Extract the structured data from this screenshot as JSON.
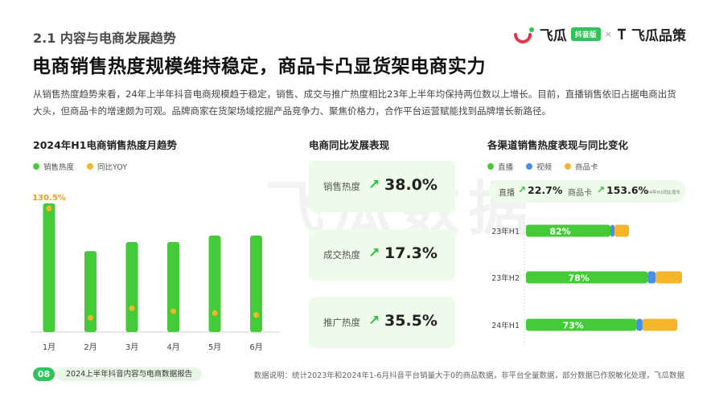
{
  "section_title": "2.1 内容与电商发展趋势",
  "logo": {
    "brand": "飞瓜",
    "badge": "抖音版",
    "separator": "×",
    "partner": "飞瓜品策"
  },
  "headline": "电商销售热度规模维持稳定，商品卡凸显货架电商实力",
  "summary": "从销售热度趋势来看，24年上半年抖音电商规模趋于稳定，销售、成交与推广热度相比23年上半年均保持两位数以上增长。目前，直播销售依旧占据电商出货大头，但商品卡的增速颇为可观。品牌商家在货架场域挖掘产品竞争力、聚焦价格力，合作平台运营赋能找到品牌增长新路径。",
  "watermark": "飞瓜数据",
  "left_panel": {
    "title": "2024年H1电商销售热度月趋势",
    "legend": [
      "销售热度",
      "同比YOY"
    ]
  },
  "middle_panel": {
    "title": "电商同比发展表现",
    "kpis": [
      {
        "label": "销售热度",
        "value": "38.0%"
      },
      {
        "label": "成交热度",
        "value": "17.3%"
      },
      {
        "label": "推广热度",
        "value": "35.5%"
      }
    ]
  },
  "right_panel": {
    "title": "各渠道销售热度表现与同比变化",
    "legend": [
      "直播",
      "视频",
      "商品卡"
    ],
    "growth": {
      "live_label": "直播",
      "live_value": "22.7%",
      "card_label": "商品卡",
      "card_value": "153.6%",
      "note": "24年H1同比增长"
    }
  },
  "chart_data": [
    {
      "type": "bar",
      "title": "2024年H1电商销售热度月趋势",
      "categories": [
        "1月",
        "2月",
        "3月",
        "4月",
        "5月",
        "6月"
      ],
      "series": [
        {
          "name": "销售热度",
          "type": "bar",
          "values": [
            100,
            63,
            70,
            70,
            75,
            75
          ]
        },
        {
          "name": "同比YOY",
          "type": "scatter",
          "values": [
            130.5,
            15,
            25,
            22,
            20,
            18
          ]
        }
      ],
      "data_labels": {
        "同比YOY": [
          "130.5%",
          "",
          "",
          "",
          "",
          ""
        ]
      },
      "colors": {
        "销售热度": "#43cc38",
        "同比YOY": "#f5b52a"
      }
    },
    {
      "type": "bar",
      "orientation": "horizontal",
      "stacked": true,
      "title": "各渠道销售热度表现与同比变化",
      "categories": [
        "23年H1",
        "23年H2",
        "24年H1"
      ],
      "series": [
        {
          "name": "直播",
          "values": [
            82,
            78,
            73
          ]
        },
        {
          "name": "视频",
          "values": [
            4,
            5,
            4
          ]
        },
        {
          "name": "商品卡",
          "values": [
            14,
            17,
            23
          ]
        }
      ],
      "data_labels": {
        "直播": [
          "82%",
          "78%",
          "73%"
        ]
      },
      "relative_totals": [
        0.66,
        1.0,
        0.97
      ],
      "colors": {
        "直播": "#43cc38",
        "视频": "#4a8fe7",
        "商品卡": "#f5b52a"
      }
    }
  ],
  "footer": {
    "page": "08",
    "report": "2024上半年抖音内容与电商数据报告",
    "note": "数据说明：统计2023年和2024年1-6月抖音平台销量大于0的商品数据，非平台全量数据，部分数据已作脱敏化处理，飞瓜数据"
  }
}
